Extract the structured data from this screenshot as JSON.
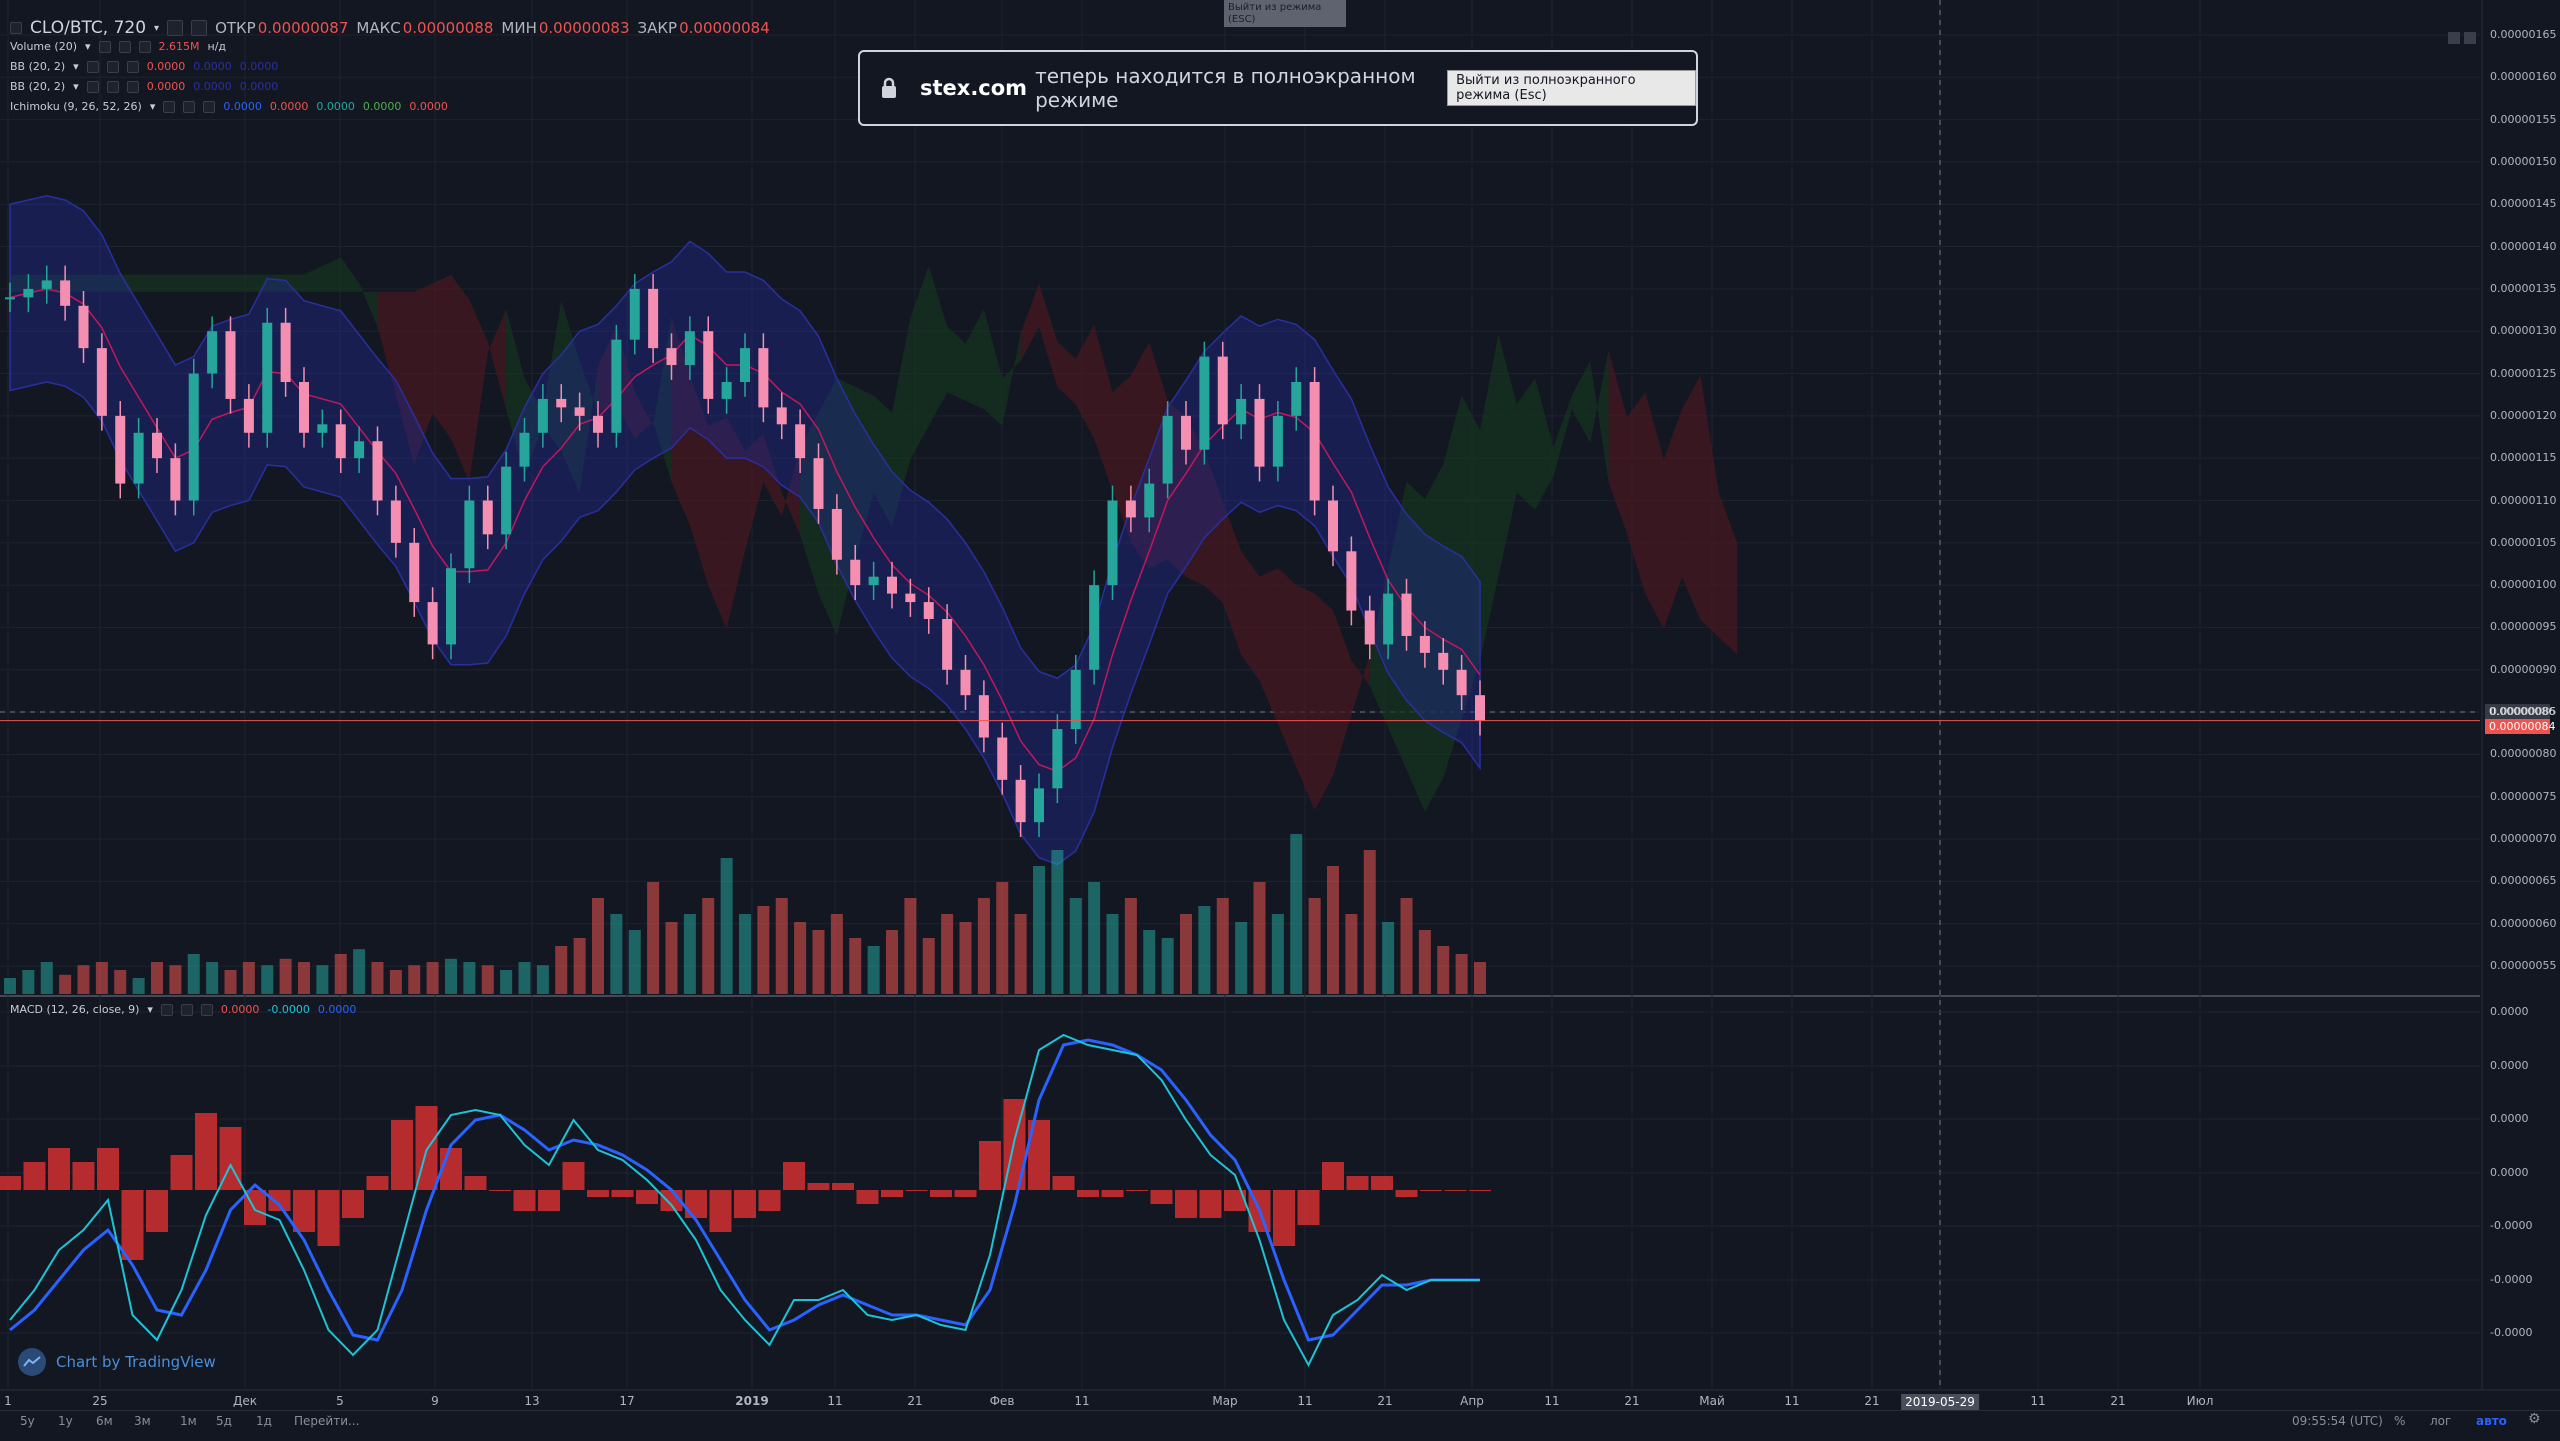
{
  "header": {
    "symbol": "CLO/BTC, 720",
    "open_label": "ОТКР",
    "open_value": "0.00000087",
    "high_label": "МАКС",
    "high_value": "0.00000088",
    "low_label": "МИН",
    "low_value": "0.00000083",
    "close_label": "ЗАКР",
    "close_value": "0.00000084"
  },
  "indicators": [
    {
      "name": "Volume (20)",
      "values": [
        "2.615M",
        "н/д"
      ]
    },
    {
      "name": "BB (20, 2)",
      "values": [
        "0.0000",
        "0.0000",
        "0.0000"
      ]
    },
    {
      "name": "BB (20, 2)",
      "values": [
        "0.0000",
        "0.0000",
        "0.0000"
      ]
    },
    {
      "name": "Ichimoku (9, 26, 52, 26)",
      "values": [
        "0.0000",
        "0.0000",
        "0.0000",
        "0.0000",
        "0.0000"
      ]
    }
  ],
  "macd_legend": {
    "name": "MACD (12, 26, close, 9)",
    "values": [
      "0.0000",
      "-0.0000",
      "0.0000"
    ]
  },
  "toast": {
    "site": "stex.com",
    "message": "теперь находится в полноэкранном режиме",
    "button": "Выйти из полноэкранного режима (Esc)"
  },
  "esc_hint": "Выйти из режима (ESC)",
  "watermark": "Chart by TradingView",
  "timeframes": [
    "5у",
    "1у",
    "6м",
    "3м",
    "1м",
    "5д",
    "1д",
    "Перейти..."
  ],
  "footer": {
    "time": "09:55:54 (UTC)",
    "percent": "%",
    "log": "лог",
    "auto": "авто"
  },
  "price_badges": {
    "current": "0.00000084",
    "crosshair": "0.00000086"
  },
  "colors": {
    "background": "#131722",
    "up": "#26a69a",
    "down": "#ef5350",
    "bb": "#2a2f9e",
    "macd": "#2962ff",
    "signal": "#1ec3d6",
    "histogram": "#d32f2f",
    "cloud_red": "#6b1b22",
    "cloud_green": "#1b4a24"
  },
  "chart_data": [
    {
      "type": "candlestick",
      "title": "CLO/BTC, 720",
      "y_ticks": [
        "0.00000165",
        "0.00000160",
        "0.00000155",
        "0.00000150",
        "0.00000145",
        "0.00000140",
        "0.00000135",
        "0.00000130",
        "0.00000125",
        "0.00000120",
        "0.00000115",
        "0.00000110",
        "0.00000105",
        "0.00000100",
        "0.00000095",
        "0.00000090",
        "0.00000085",
        "0.00000080",
        "0.00000075",
        "0.00000070",
        "0.00000065",
        "0.00000060",
        "0.00000055"
      ],
      "ylim": [
        5.3e-07,
        1.67e-06
      ],
      "x_ticks": [
        "1",
        "25",
        "Дек",
        "5",
        "9",
        "13",
        "17",
        "2019",
        "11",
        "21",
        "Фев",
        "11",
        "Мар",
        "11",
        "21",
        "Апр",
        "11",
        "21",
        "Май",
        "11",
        "21",
        "2019-05-29",
        "11",
        "21",
        "Июл"
      ],
      "close_path": [
        1.34e-06,
        1.35e-06,
        1.36e-06,
        1.33e-06,
        1.28e-06,
        1.2e-06,
        1.12e-06,
        1.18e-06,
        1.15e-06,
        1.1e-06,
        1.25e-06,
        1.3e-06,
        1.22e-06,
        1.18e-06,
        1.31e-06,
        1.24e-06,
        1.18e-06,
        1.19e-06,
        1.15e-06,
        1.17e-06,
        1.1e-06,
        1.05e-06,
        9.8e-07,
        9.3e-07,
        1.02e-06,
        1.1e-06,
        1.06e-06,
        1.14e-06,
        1.18e-06,
        1.22e-06,
        1.21e-06,
        1.2e-06,
        1.18e-06,
        1.29e-06,
        1.35e-06,
        1.28e-06,
        1.26e-06,
        1.3e-06,
        1.22e-06,
        1.24e-06,
        1.28e-06,
        1.21e-06,
        1.19e-06,
        1.15e-06,
        1.09e-06,
        1.03e-06,
        1e-06,
        1.01e-06,
        9.9e-07,
        9.8e-07,
        9.6e-07,
        9e-07,
        8.7e-07,
        8.2e-07,
        7.7e-07,
        7.2e-07,
        7.6e-07,
        8.3e-07,
        9e-07,
        1e-06,
        1.1e-06,
        1.08e-06,
        1.12e-06,
        1.2e-06,
        1.16e-06,
        1.27e-06,
        1.19e-06,
        1.22e-06,
        1.14e-06,
        1.2e-06,
        1.24e-06,
        1.1e-06,
        1.04e-06,
        9.7e-07,
        9.3e-07,
        9.9e-07,
        9.4e-07,
        9.2e-07,
        9e-07,
        8.7e-07,
        8.4e-07
      ],
      "volume_path": [
        0.1,
        0.15,
        0.2,
        0.12,
        0.18,
        0.2,
        0.15,
        0.1,
        0.2,
        0.18,
        0.25,
        0.2,
        0.15,
        0.2,
        0.18,
        0.22,
        0.2,
        0.18,
        0.25,
        0.28,
        0.2,
        0.15,
        0.18,
        0.2,
        0.22,
        0.2,
        0.18,
        0.15,
        0.2,
        0.18,
        0.3,
        0.35,
        0.6,
        0.5,
        0.4,
        0.7,
        0.45,
        0.5,
        0.6,
        0.85,
        0.5,
        0.55,
        0.6,
        0.45,
        0.4,
        0.5,
        0.35,
        0.3,
        0.4,
        0.6,
        0.35,
        0.5,
        0.45,
        0.6,
        0.7,
        0.5,
        0.8,
        0.9,
        0.6,
        0.7,
        0.5,
        0.6,
        0.4,
        0.35,
        0.5,
        0.55,
        0.6,
        0.45,
        0.7,
        0.5,
        1.0,
        0.6,
        0.8,
        0.5,
        0.9,
        0.45,
        0.6,
        0.4,
        0.3,
        0.25,
        0.2
      ]
    },
    {
      "type": "line",
      "title": "MACD (12, 26, close, 9)",
      "y_ticks": [
        "0.0000",
        "0.0000",
        "0.0000",
        "0.0000",
        "-0.0000",
        "-0.0000",
        "-0.0000"
      ],
      "series": [
        {
          "name": "MACD",
          "values": [
            -2.6,
            -2.0,
            -1.2,
            -0.8,
            -0.2,
            -2.5,
            -3.0,
            -2.0,
            -0.5,
            0.5,
            -0.4,
            -0.6,
            -1.6,
            -2.8,
            -3.3,
            -2.8,
            -1.0,
            0.8,
            1.5,
            1.6,
            1.5,
            0.9,
            0.5,
            1.4,
            0.8,
            0.6,
            0.2,
            -0.3,
            -1.0,
            -2.0,
            -2.6,
            -3.1,
            -2.2,
            -2.2,
            -2.0,
            -2.5,
            -2.6,
            -2.5,
            -2.7,
            -2.8,
            -1.3,
            1.0,
            2.8,
            3.1,
            2.9,
            2.8,
            2.7,
            2.2,
            1.4,
            0.7,
            0.3,
            -1.0,
            -2.6,
            -3.5,
            -2.5,
            -2.2,
            -1.7,
            -2.0,
            -1.8,
            -1.8,
            -1.8
          ],
          "color": "#1ec3d6"
        },
        {
          "name": "Signal",
          "values": [
            -2.8,
            -2.4,
            -1.8,
            -1.2,
            -0.8,
            -1.5,
            -2.4,
            -2.5,
            -1.6,
            -0.4,
            0.1,
            -0.3,
            -1.0,
            -2.0,
            -2.9,
            -3.0,
            -2.0,
            -0.4,
            0.9,
            1.4,
            1.5,
            1.2,
            0.8,
            1.0,
            0.9,
            0.7,
            0.4,
            0.0,
            -0.6,
            -1.4,
            -2.2,
            -2.8,
            -2.6,
            -2.3,
            -2.1,
            -2.3,
            -2.5,
            -2.5,
            -2.6,
            -2.7,
            -2.0,
            -0.3,
            1.8,
            2.9,
            3.0,
            2.9,
            2.7,
            2.4,
            1.8,
            1.1,
            0.6,
            -0.4,
            -1.8,
            -3.0,
            -2.9,
            -2.4,
            -1.9,
            -1.9,
            -1.8,
            -1.8,
            -1.8
          ],
          "color": "#2962ff"
        }
      ]
    }
  ]
}
